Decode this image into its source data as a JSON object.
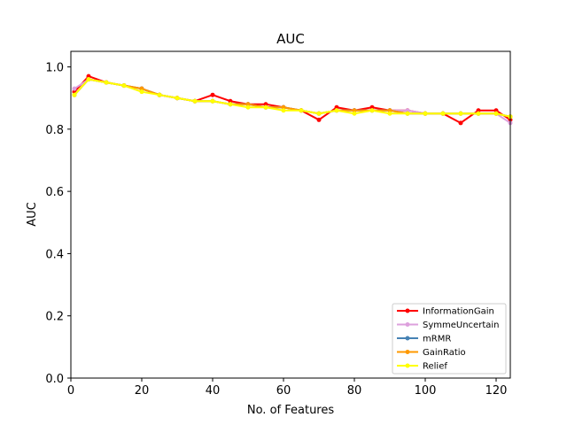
{
  "chart_data": {
    "type": "line",
    "title": "AUC",
    "xlabel": "No. of Features",
    "ylabel": "AUC",
    "xlim": [
      0,
      124
    ],
    "ylim": [
      0.0,
      1.05
    ],
    "xticks": [
      0,
      20,
      40,
      60,
      80,
      100,
      120
    ],
    "yticks": [
      0.0,
      0.2,
      0.4,
      0.6,
      0.8,
      1.0
    ],
    "xtick_labels": [
      "0",
      "20",
      "40",
      "60",
      "80",
      "100",
      "120"
    ],
    "ytick_labels": [
      "0.0",
      "0.2",
      "0.4",
      "0.6",
      "0.8",
      "1.0"
    ],
    "grid": false,
    "legend_position": "bottom-right",
    "x": [
      1,
      5,
      10,
      15,
      20,
      25,
      30,
      35,
      40,
      45,
      50,
      55,
      60,
      65,
      70,
      75,
      80,
      85,
      90,
      95,
      100,
      105,
      110,
      115,
      120,
      124
    ],
    "series": [
      {
        "name": "InformationGain",
        "color": "#ff0000",
        "values": [
          0.92,
          0.97,
          0.95,
          0.94,
          0.93,
          0.91,
          0.9,
          0.89,
          0.91,
          0.89,
          0.88,
          0.88,
          0.87,
          0.86,
          0.83,
          0.87,
          0.86,
          0.87,
          0.86,
          0.86,
          0.85,
          0.85,
          0.82,
          0.86,
          0.86,
          0.83
        ]
      },
      {
        "name": "SymmeUncertain",
        "color": "#dda0dd",
        "values": [
          0.93,
          0.96,
          0.95,
          0.94,
          0.93,
          0.91,
          0.9,
          0.89,
          0.89,
          0.88,
          0.88,
          0.87,
          0.87,
          0.86,
          0.85,
          0.86,
          0.86,
          0.86,
          0.86,
          0.86,
          0.85,
          0.85,
          0.85,
          0.85,
          0.85,
          0.82
        ]
      },
      {
        "name": "mRMR",
        "color": "#4682b4",
        "values": [
          0.91,
          0.96,
          0.95,
          0.94,
          0.93,
          0.91,
          0.9,
          0.89,
          0.89,
          0.88,
          0.88,
          0.87,
          0.87,
          0.86,
          0.85,
          0.86,
          0.86,
          0.86,
          0.86,
          0.85,
          0.85,
          0.85,
          0.85,
          0.85,
          0.85,
          0.84
        ]
      },
      {
        "name": "GainRatio",
        "color": "#ff9900",
        "values": [
          0.91,
          0.96,
          0.95,
          0.94,
          0.93,
          0.91,
          0.9,
          0.89,
          0.89,
          0.88,
          0.88,
          0.87,
          0.87,
          0.86,
          0.85,
          0.86,
          0.86,
          0.86,
          0.86,
          0.85,
          0.85,
          0.85,
          0.85,
          0.85,
          0.85,
          0.84
        ]
      },
      {
        "name": "Relief",
        "color": "#ffff00",
        "values": [
          0.91,
          0.96,
          0.95,
          0.94,
          0.92,
          0.91,
          0.9,
          0.89,
          0.89,
          0.88,
          0.87,
          0.87,
          0.86,
          0.86,
          0.85,
          0.86,
          0.85,
          0.86,
          0.85,
          0.85,
          0.85,
          0.85,
          0.85,
          0.85,
          0.85,
          0.84
        ]
      }
    ]
  }
}
